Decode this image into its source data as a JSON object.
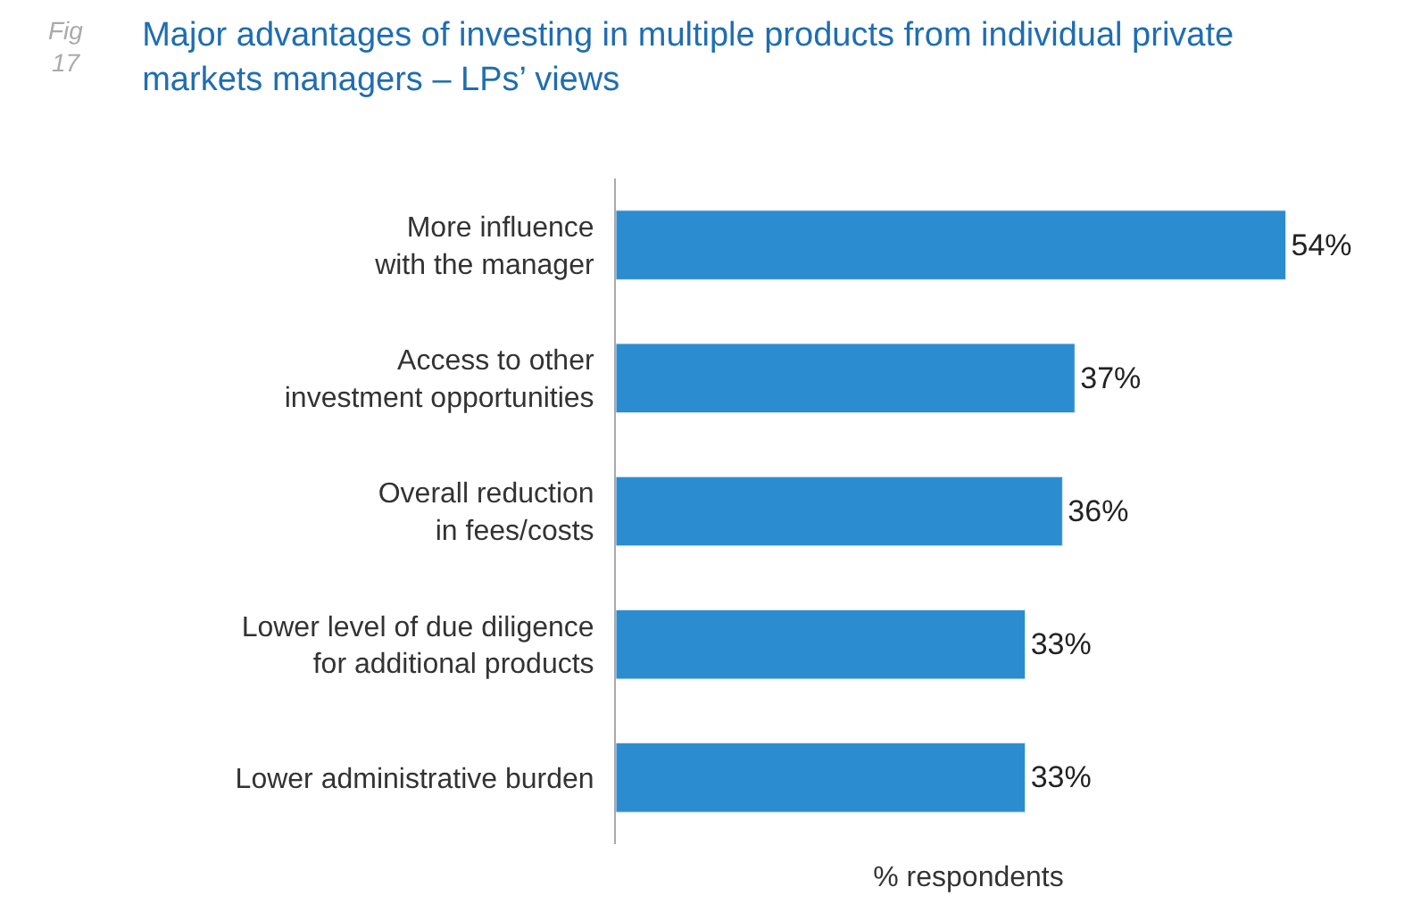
{
  "chart_data": {
    "type": "bar",
    "orientation": "horizontal",
    "title": "Major advantages of investing in multiple products from individual private\nmarkets managers – LPs’ views",
    "categories": [
      "More influence\nwith the manager",
      "Access to other\ninvestment opportunities",
      "Overall reduction\nin fees/costs",
      "Lower level of due diligence\nfor additional products",
      "Lower administrative burden"
    ],
    "values": [
      54,
      37,
      36,
      33,
      33
    ],
    "value_labels": [
      "54%",
      "37%",
      "36%",
      "33%",
      "33%"
    ],
    "color": "#2b8ccf",
    "xlabel": "% respondents",
    "tick_labels": "y",
    "annotations": [
      "Fig\n17"
    ]
  }
}
